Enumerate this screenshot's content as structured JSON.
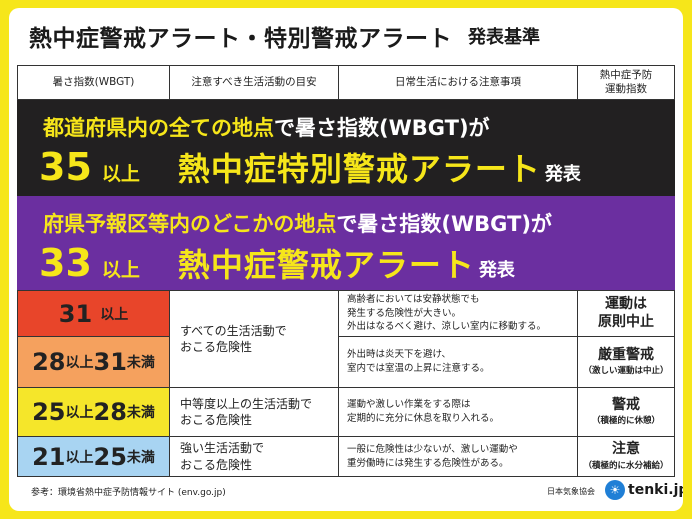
{
  "title": {
    "main": "熱中症警戒アラート・特別警戒アラート",
    "sub": "発表基準"
  },
  "headers": {
    "wbgt": "暑さ指数(WBGT)",
    "daily": "注意すべき生活活動の目安",
    "caution": "日常生活における注意事項",
    "exercise_1": "熱中症予防",
    "exercise_2": "運動指数"
  },
  "special_alert": {
    "line1_yellow": "都道府県内の全ての地点",
    "line1_white": "で暑さ指数(WBGT)が",
    "number": "35",
    "unit": "以上",
    "alert": "熱中症特別警戒アラート",
    "announce": "発表"
  },
  "alert": {
    "line1_yellow": "府県予報区等内のどこかの地点",
    "line1_white": "で暑さ指数(WBGT)が",
    "number": "33",
    "unit": "以上",
    "alert": "熱中症警戒アラート",
    "announce": "発表"
  },
  "levels": [
    {
      "n1": "31",
      "s1": "以上",
      "n2": "",
      "s2": "",
      "color": "#e8452a"
    },
    {
      "n1": "28",
      "s1": "以上",
      "n2": "31",
      "s2": "未満",
      "color": "#f5a15e"
    },
    {
      "n1": "25",
      "s1": "以上",
      "n2": "28",
      "s2": "未満",
      "color": "#f5e62a"
    },
    {
      "n1": "21",
      "s1": "以上",
      "n2": "25",
      "s2": "未満",
      "color": "#a8d4f2"
    }
  ],
  "daily": [
    {
      "l1": "すべての生活活動で",
      "l2": "おこる危険性"
    },
    {
      "l1": "中等度以上の生活活動で",
      "l2": "おこる危険性"
    },
    {
      "l1": "強い生活活動で",
      "l2": "おこる危険性"
    }
  ],
  "caution": [
    {
      "l1": "高齢者においては安静状態でも",
      "l2": "発生する危険性が大きい。",
      "l3": "外出はなるべく避け、涼しい室内に移動する。"
    },
    {
      "l1": "外出時は炎天下を避け、",
      "l2": "室内では室温の上昇に注意する。",
      "l3": ""
    },
    {
      "l1": "運動や激しい作業をする際は",
      "l2": "定期的に充分に休息を取り入れる。",
      "l3": ""
    },
    {
      "l1": "一般に危険性は少ないが、激しい運動や",
      "l2": "重労働時には発生する危険性がある。",
      "l3": ""
    }
  ],
  "exercise": [
    {
      "l1": "運動は",
      "l2": "原則中止",
      "note": ""
    },
    {
      "l1": "厳重警戒",
      "l2": "",
      "note": "（激しい運動は中止）"
    },
    {
      "l1": "警戒",
      "l2": "",
      "note": "（積極的に休憩）"
    },
    {
      "l1": "注意",
      "l2": "",
      "note": "（積極的に水分補給）"
    }
  ],
  "footer": {
    "source": "参考：環境省熱中症予防情報サイト (env.go.jp)",
    "jma": "日本気象協会",
    "logo": "tenki.jp"
  }
}
